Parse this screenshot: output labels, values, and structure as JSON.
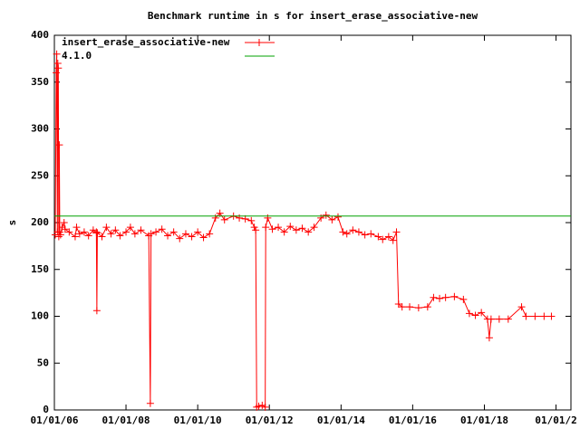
{
  "chart_data": {
    "type": "line",
    "title": "Benchmark runtime in s for insert_erase_associative-new",
    "y_label": "s",
    "legend": "top left",
    "grid": false,
    "xlim": [
      "2006-01-01",
      "2020-06-01"
    ],
    "xticks": [
      {
        "value": "2006-01-01",
        "label": "01/01/06"
      },
      {
        "value": "2008-01-01",
        "label": "01/01/08"
      },
      {
        "value": "2010-01-01",
        "label": "01/01/10"
      },
      {
        "value": "2012-01-01",
        "label": "01/01/12"
      },
      {
        "value": "2014-01-01",
        "label": "01/01/14"
      },
      {
        "value": "2016-01-01",
        "label": "01/01/16"
      },
      {
        "value": "2018-01-01",
        "label": "01/01/18"
      },
      {
        "value": "2020-01-01",
        "label": "01/01/2"
      }
    ],
    "ylim": [
      0,
      400
    ],
    "yticks": [
      0,
      50,
      100,
      150,
      200,
      250,
      300,
      350,
      400
    ],
    "series": [
      {
        "name": "insert_erase_associative-new",
        "color": "#ff0000",
        "markers": true,
        "x": [
          "2006-01-10",
          "2006-01-20",
          "2006-01-25",
          "2006-02-01",
          "2006-02-05",
          "2006-02-10",
          "2006-02-15",
          "2006-02-20",
          "2006-02-25",
          "2006-03-05",
          "2006-03-20",
          "2006-04-10",
          "2006-04-20",
          "2006-06-01",
          "2006-08-01",
          "2006-08-15",
          "2006-09-15",
          "2006-11-01",
          "2006-12-15",
          "2007-02-01",
          "2007-03-05",
          "2007-03-10",
          "2007-03-15",
          "2007-05-01",
          "2007-06-15",
          "2007-08-01",
          "2007-09-15",
          "2007-11-01",
          "2008-01-01",
          "2008-02-15",
          "2008-04-01",
          "2008-06-01",
          "2008-08-20",
          "2008-09-05",
          "2008-09-12",
          "2008-11-01",
          "2009-01-01",
          "2009-03-01",
          "2009-05-01",
          "2009-07-01",
          "2009-09-01",
          "2009-11-01",
          "2010-01-01",
          "2010-03-01",
          "2010-05-01",
          "2010-07-01",
          "2010-08-15",
          "2010-10-01",
          "2011-01-01",
          "2011-03-01",
          "2011-05-01",
          "2011-07-01",
          "2011-08-01",
          "2011-08-15",
          "2011-08-25",
          "2011-09-15",
          "2011-10-20",
          "2011-11-20",
          "2011-11-25",
          "2011-12-15",
          "2012-02-01",
          "2012-04-01",
          "2012-06-01",
          "2012-08-01",
          "2012-10-01",
          "2012-12-01",
          "2013-02-01",
          "2013-04-01",
          "2013-06-10",
          "2013-08-01",
          "2013-10-01",
          "2013-12-01",
          "2014-01-20",
          "2014-03-01",
          "2014-05-01",
          "2014-07-01",
          "2014-09-01",
          "2014-11-01",
          "2015-01-15",
          "2015-03-01",
          "2015-05-01",
          "2015-06-15",
          "2015-07-20",
          "2015-08-10",
          "2015-09-15",
          "2015-12-01",
          "2016-03-01",
          "2016-06-01",
          "2016-08-01",
          "2016-10-01",
          "2016-12-01",
          "2017-03-01",
          "2017-06-01",
          "2017-08-01",
          "2017-10-01",
          "2017-12-01",
          "2018-02-01",
          "2018-02-20",
          "2018-03-10",
          "2018-06-01",
          "2018-09-01",
          "2019-01-15",
          "2019-03-01",
          "2019-06-01",
          "2019-09-01",
          "2019-11-15"
        ],
        "values": [
          187,
          360,
          380,
          190,
          370,
          365,
          185,
          283,
          190,
          187,
          195,
          200,
          193,
          190,
          185,
          195,
          188,
          190,
          186,
          192,
          190,
          106,
          189,
          185,
          195,
          188,
          192,
          186,
          190,
          195,
          188,
          192,
          186,
          7,
          188,
          190,
          193,
          186,
          190,
          183,
          188,
          185,
          190,
          184,
          188,
          205,
          210,
          203,
          207,
          205,
          204,
          202,
          195,
          192,
          3,
          4,
          5,
          3,
          195,
          205,
          193,
          195,
          190,
          196,
          192,
          194,
          190,
          195,
          205,
          208,
          203,
          206,
          190,
          188,
          192,
          190,
          187,
          188,
          185,
          182,
          185,
          181,
          190,
          113,
          110,
          110,
          109,
          110,
          120,
          119,
          120,
          121,
          118,
          103,
          101,
          104,
          97,
          77,
          97,
          97,
          97,
          110,
          100,
          100,
          100,
          100
        ]
      },
      {
        "name": "4.1.0",
        "color": "#00a000",
        "markers": false,
        "x": [
          "2006-01-01",
          "2020-06-01"
        ],
        "values": [
          207,
          207
        ]
      }
    ]
  }
}
